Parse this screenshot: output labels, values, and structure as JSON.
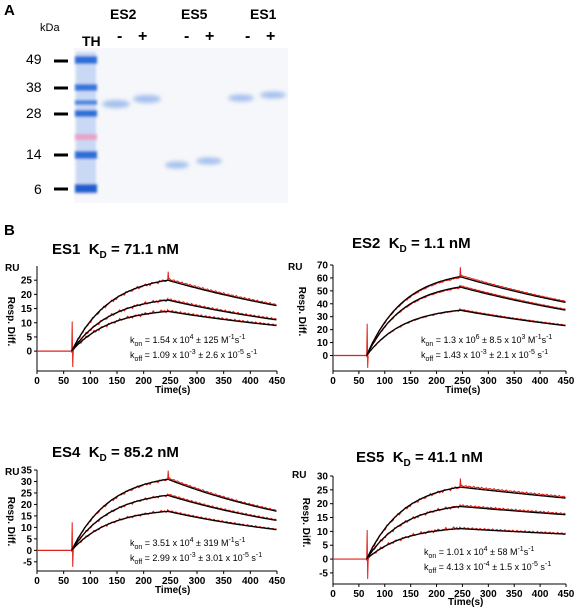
{
  "panelA": {
    "letter": "A",
    "kda_label": "kDa",
    "ladder_label": "TH",
    "lane_groups": [
      {
        "name": "ES2",
        "minus": "-",
        "plus": "+"
      },
      {
        "name": "ES5",
        "minus": "-",
        "plus": "+"
      },
      {
        "name": "ES1",
        "minus": "-",
        "plus": "+"
      }
    ],
    "markers": [
      "49",
      "38",
      "28",
      "14",
      "6"
    ],
    "colors": {
      "gel": "#f8f8fa",
      "band": "#a9c4ee",
      "ladder": "#2a6fd8",
      "ladder_pink": "#e9a3c9"
    }
  },
  "panelB": {
    "letter": "B",
    "plots": [
      {
        "id": "ES1",
        "title": "ES1",
        "kd_symbol": "K",
        "kd_sub": "D",
        "kd_value": "= 71.1 nM",
        "ru": "RU",
        "ylabel": "Resp. Diff.",
        "xlabel": "Time(s)",
        "yticks": [
          "0",
          "5",
          "10",
          "15",
          "20",
          "25"
        ],
        "xticks": [
          "0",
          "50",
          "100",
          "150",
          "200",
          "250",
          "300",
          "350",
          "400",
          "450"
        ],
        "kon": {
          "k": "k",
          "sub": "on",
          "text": " = 1.54 x 10",
          "sup1": "4",
          "text2": " ± 125 M",
          "sup2": "-1",
          "text3": "s",
          "sup3": "-1"
        },
        "koff": {
          "k": "k",
          "sub": "off",
          "text": " = 1.09 x 10",
          "sup1": "-3",
          "text2": " ± 2.6 x 10",
          "sup2": "-5",
          "text3": " s",
          "sup3": "-1"
        }
      },
      {
        "id": "ES2",
        "title": "ES2",
        "kd_symbol": "K",
        "kd_sub": "D",
        "kd_value": "= 1.1 nM",
        "ru": "RU",
        "ylabel": "Resp. Diff.",
        "xlabel": "Time(s)",
        "yticks": [
          "0",
          "10",
          "20",
          "30",
          "40",
          "50",
          "60",
          "70"
        ],
        "xticks": [
          "0",
          "50",
          "100",
          "150",
          "200",
          "250",
          "300",
          "350",
          "400",
          "450"
        ],
        "kon": {
          "k": "k",
          "sub": "on",
          "text": " = 1.3 x 10",
          "sup1": "6",
          "text2": " ± 8.5 x 10",
          "sup2": "3",
          "text3": " M",
          "sup3": "-1",
          "text4": "s",
          "sup4": "-1"
        },
        "koff": {
          "k": "k",
          "sub": "off",
          "text": " = 1.43 x 10",
          "sup1": "-3",
          "text2": " ± 2.1 x 10",
          "sup2": "-5",
          "text3": " s",
          "sup3": "-1"
        }
      },
      {
        "id": "ES4",
        "title": "ES4",
        "kd_symbol": "K",
        "kd_sub": "D",
        "kd_value": "= 85.2 nM",
        "ru": "RU",
        "ylabel": "Resp. Diff.",
        "xlabel": "Time(s)",
        "yticks": [
          "-5",
          "0",
          "5",
          "10",
          "15",
          "20",
          "25",
          "30",
          "35"
        ],
        "xticks": [
          "0",
          "50",
          "100",
          "150",
          "200",
          "250",
          "300",
          "350",
          "400",
          "450"
        ],
        "kon": {
          "k": "k",
          "sub": "on",
          "text": " = 3.51 x 10",
          "sup1": "4",
          "text2": " ± 319 M",
          "sup2": "-1",
          "text3": "s",
          "sup3": "-1"
        },
        "koff": {
          "k": "k",
          "sub": "off",
          "text": " = 2.99 x 10",
          "sup1": "-3",
          "text2": " ± 3.01 x 10",
          "sup2": "-5",
          "text3": " s",
          "sup3": "-1"
        }
      },
      {
        "id": "ES5",
        "title": "ES5",
        "kd_symbol": "K",
        "kd_sub": "D",
        "kd_value": "= 41.1 nM",
        "ru": "RU",
        "ylabel": "Resp. Diff.",
        "xlabel": "Time(s)",
        "yticks": [
          "-5",
          "0",
          "5",
          "10",
          "15",
          "20",
          "25",
          "30"
        ],
        "xticks": [
          "0",
          "50",
          "100",
          "150",
          "200",
          "250",
          "300",
          "350",
          "400",
          "450"
        ],
        "kon": {
          "k": "k",
          "sub": "on",
          "text": " = 1.01 x 10",
          "sup1": "4",
          "text2": " ± 58 M",
          "sup2": "-1",
          "text3": "s",
          "sup3": "-1"
        },
        "koff": {
          "k": "k",
          "sub": "off",
          "text": " = 4.13 x 10",
          "sup1": "-4",
          "text2": " ± 1.5 x 10",
          "sup2": "-5",
          "text3": " s",
          "sup3": "-1"
        }
      }
    ]
  },
  "chart_data": [
    {
      "type": "line",
      "id": "ES1",
      "x_range": [
        0,
        450
      ],
      "y_range": [
        -7,
        30
      ],
      "injection_time": 65,
      "dissociation_start": 245,
      "series_plateau": [
        14,
        18,
        25
      ],
      "series_end": [
        9,
        11,
        16
      ]
    },
    {
      "type": "line",
      "id": "ES2",
      "x_range": [
        0,
        450
      ],
      "y_range": [
        -12,
        70
      ],
      "injection_time": 65,
      "dissociation_start": 245,
      "series_plateau": [
        35,
        53,
        61
      ],
      "series_end": [
        23,
        35,
        41
      ]
    },
    {
      "type": "line",
      "id": "ES4",
      "x_range": [
        0,
        450
      ],
      "y_range": [
        -9,
        35
      ],
      "injection_time": 65,
      "dissociation_start": 245,
      "series_plateau": [
        17,
        24,
        31
      ],
      "series_end": [
        9,
        13,
        17
      ]
    },
    {
      "type": "line",
      "id": "ES5",
      "x_range": [
        0,
        450
      ],
      "y_range": [
        -9,
        30
      ],
      "injection_time": 65,
      "dissociation_start": 245,
      "series_plateau": [
        11,
        19,
        26
      ],
      "series_end": [
        9,
        16,
        22
      ]
    }
  ]
}
